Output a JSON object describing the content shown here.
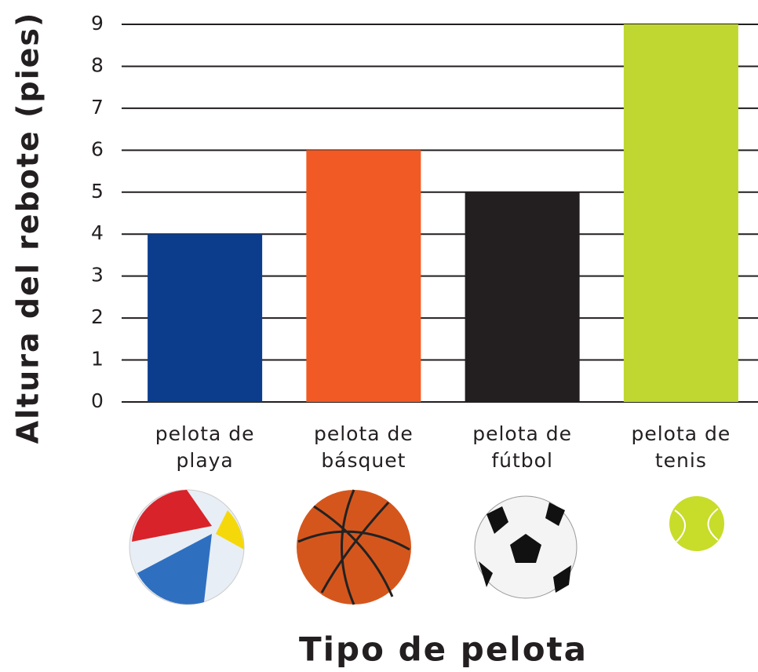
{
  "chart_data": {
    "type": "bar",
    "y_label": "Altura del rebote (pies)",
    "x_label": "Tipo de pelota",
    "categories": [
      "pelota de playa",
      "pelota de básquet",
      "pelota de fútbol",
      "pelota de tenis"
    ],
    "values": [
      4,
      6,
      5,
      9
    ],
    "colors": [
      "#0b3d8c",
      "#f15a24",
      "#231f20",
      "#bfd730"
    ],
    "ylim": [
      0,
      9
    ],
    "yticks": [
      0,
      1,
      2,
      3,
      4,
      5,
      6,
      7,
      8,
      9
    ],
    "grid": true
  }
}
